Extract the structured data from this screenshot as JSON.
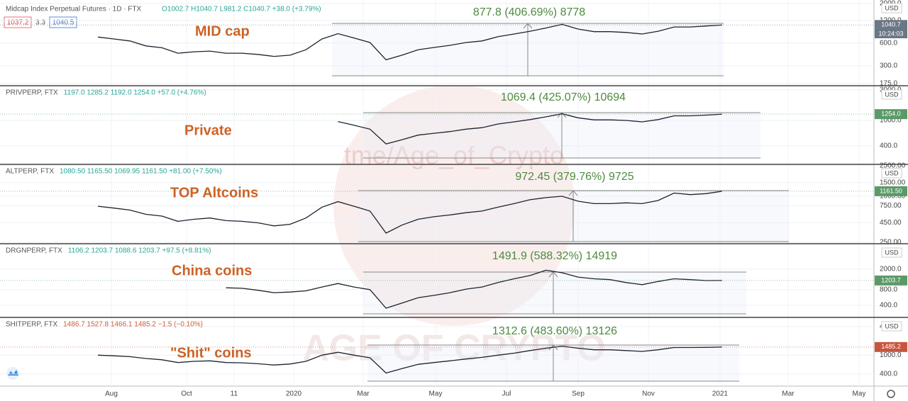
{
  "header": {
    "symbol": "Midcap Index Perpetual Futures · 1D · FTX",
    "bid": "1037.2",
    "spread": "3.3",
    "ask": "1040.5",
    "time": "10:24:03"
  },
  "x_axis_labels": [
    "Aug",
    "Oct",
    "11",
    "2020",
    "Mar",
    "May",
    "Jul",
    "Sep",
    "Nov",
    "2021",
    "Mar",
    "May"
  ],
  "watermarks": [
    "tme/Age_of_Crypto",
    "AGE OF CRYPTO"
  ],
  "chart_data": [
    {
      "type": "line",
      "title": "",
      "ohlc": "O1002.7 H1040.7 L981.2 C1040.7 +38.0 (+3.79%)",
      "annotation": "MID cap",
      "measure_label": "877.8 (406.69%) 8778",
      "currency": "USD",
      "price_tag": "1040.7",
      "log_scale": true,
      "color": "#1e222d",
      "tag_color": "#6b7785",
      "ohlc_color": "#26a69a",
      "ylim": [
        167,
        2230
      ],
      "yticks": [
        {
          "value": 2000,
          "label": "2000.0"
        },
        {
          "value": 1200,
          "label": "1200.0"
        },
        {
          "value": 600,
          "label": "600.0"
        },
        {
          "value": 300,
          "label": "300.0"
        },
        {
          "value": 175,
          "label": "175.0"
        }
      ],
      "values": [
        720,
        680,
        640,
        550,
        520,
        440,
        460,
        470,
        440,
        440,
        425,
        400,
        415,
        490,
        680,
        800,
        700,
        610,
        360,
        415,
        490,
        525,
        560,
        610,
        640,
        730,
        790,
        860,
        950,
        1060,
        920,
        850,
        850,
        830,
        790,
        860,
        980,
        980,
        1010,
        1040.7
      ]
    },
    {
      "type": "line",
      "title": "PRIVPERP, FTX",
      "ohlc": "1197.0 1285.2 1192.0 1254.0 +57.0 (+4.76%)",
      "annotation": "Private",
      "measure_label": "1069.4 (425.07%) 10694",
      "currency": "USD",
      "price_tag": "1254.0",
      "log_scale": true,
      "color": "#1e222d",
      "tag_color": "#5b9a68",
      "ohlc_color": "#26a69a",
      "ylim": [
        211,
        3400
      ],
      "yticks": [
        {
          "value": 3000,
          "label": "3000.0"
        },
        {
          "value": 1000,
          "label": "1000.0"
        },
        {
          "value": 400,
          "label": "400.0"
        }
      ],
      "values": [
        null,
        null,
        null,
        null,
        null,
        null,
        null,
        null,
        null,
        null,
        null,
        null,
        null,
        null,
        null,
        960,
        840,
        730,
        430,
        500,
        590,
        630,
        670,
        730,
        770,
        880,
        950,
        1030,
        1140,
        1270,
        1100,
        1020,
        1020,
        1000,
        950,
        1030,
        1180,
        1180,
        1210,
        1254
      ]
    },
    {
      "type": "line",
      "title": "ALTPERP, FTX",
      "ohlc": "1080.50 1165.50 1069.95 1161.50 +81.00 (+7.50%)",
      "annotation": "TOP  Altcoins",
      "measure_label": "972.45 (379.76%) 9725",
      "currency": "USD",
      "price_tag": "1161.50",
      "log_scale": true,
      "color": "#1e222d",
      "tag_color": "#5b9a68",
      "ohlc_color": "#26a69a",
      "ylim": [
        245,
        2550
      ],
      "yticks": [
        {
          "value": 2500,
          "label": "2500.00"
        },
        {
          "value": 1500,
          "label": "1500.00"
        },
        {
          "value": 1000,
          "label": "1000.00"
        },
        {
          "value": 750,
          "label": "750.00"
        },
        {
          "value": 450,
          "label": "450.00"
        },
        {
          "value": 250,
          "label": "250.00"
        }
      ],
      "values": [
        740,
        700,
        660,
        580,
        550,
        470,
        500,
        520,
        480,
        470,
        450,
        410,
        430,
        520,
        720,
        850,
        740,
        640,
        330,
        420,
        500,
        540,
        570,
        610,
        640,
        720,
        800,
        900,
        960,
        1000,
        860,
        800,
        800,
        820,
        800,
        880,
        1100,
        1050,
        1080,
        1161.5
      ]
    },
    {
      "type": "line",
      "title": "DRGNPERP, FTX",
      "ohlc": "1106.2 1203.7 1088.6 1203.7 +97.5 (+8.81%)",
      "annotation": "China coins",
      "measure_label": "1491.9 (588.32%) 14919",
      "currency": "USD",
      "price_tag": "1203.7",
      "log_scale": true,
      "color": "#1e222d",
      "tag_color": "#5b9a68",
      "ohlc_color": "#26a69a",
      "ylim": [
        240,
        6000
      ],
      "yticks": [
        {
          "value": 2000,
          "label": "2000.0"
        },
        {
          "value": 800,
          "label": "800.0"
        },
        {
          "value": 400,
          "label": "400.0"
        }
      ],
      "values": [
        null,
        null,
        null,
        null,
        null,
        null,
        null,
        null,
        870,
        850,
        780,
        700,
        720,
        760,
        900,
        1050,
        900,
        800,
        350,
        440,
        560,
        620,
        700,
        820,
        900,
        1100,
        1300,
        1500,
        1900,
        1700,
        1400,
        1300,
        1250,
        1100,
        1000,
        1150,
        1300,
        1250,
        1200,
        1203.7
      ]
    },
    {
      "type": "line",
      "title": "SHITPERP, FTX",
      "ohlc": "1486.7 1527.8 1466.1 1485.2 −1.5 (−0.10%)",
      "annotation": "\"Shit\" coins",
      "measure_label": "1312.6 (483.60%) 13126",
      "currency": "USD",
      "price_tag": "1485.2",
      "log_scale": true,
      "color": "#1e222d",
      "tag_color": "#c7553d",
      "ohlc_color": "#d05a3a",
      "ylim": [
        222,
        6060
      ],
      "yticks": [
        {
          "value": 4000,
          "label": "4000.0"
        },
        {
          "value": 1000,
          "label": "1000.0"
        },
        {
          "value": 400,
          "label": "400.0"
        }
      ],
      "values": [
        1000,
        970,
        930,
        850,
        800,
        700,
        740,
        760,
        700,
        690,
        660,
        620,
        650,
        740,
        1000,
        1150,
        1000,
        880,
        420,
        520,
        640,
        700,
        760,
        830,
        900,
        1000,
        1100,
        1250,
        1400,
        1550,
        1400,
        1300,
        1300,
        1250,
        1200,
        1300,
        1450,
        1450,
        1460,
        1485.2
      ]
    }
  ]
}
